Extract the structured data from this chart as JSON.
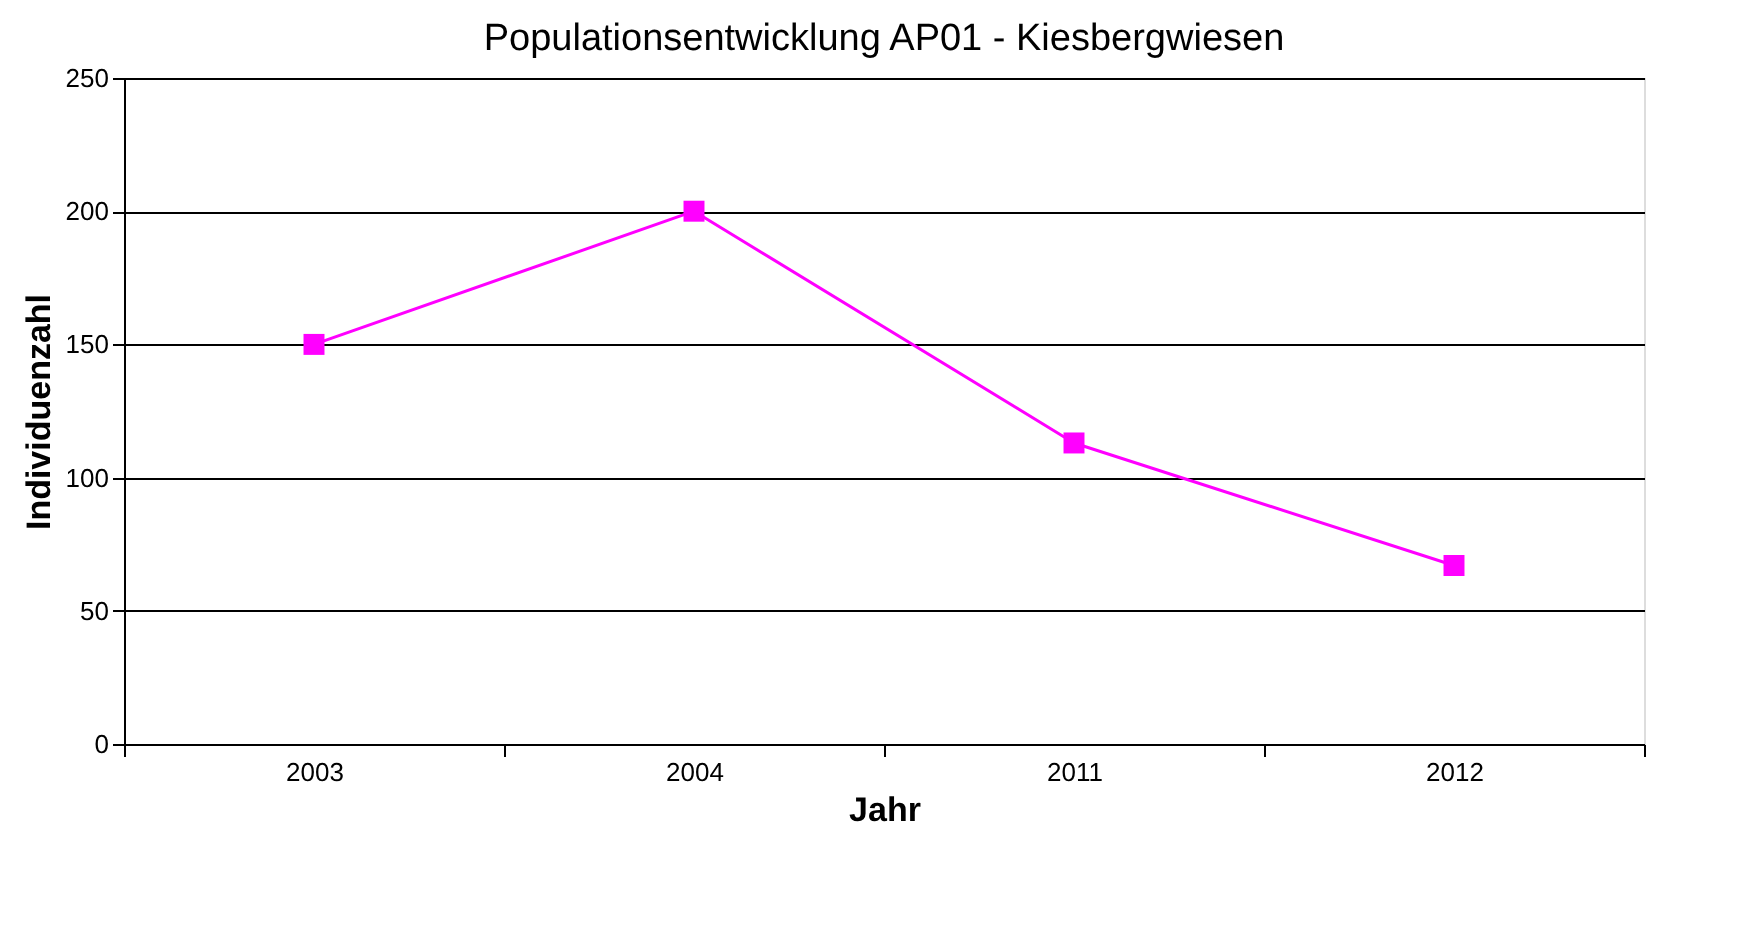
{
  "chart_data": {
    "type": "line",
    "title": "Populationsentwicklung AP01 - Kiesbergwiesen",
    "xlabel": "Jahr",
    "ylabel": "Individuenzahl",
    "categories": [
      "2003",
      "2004",
      "2011",
      "2012"
    ],
    "series": [
      {
        "color": "#ff00ff",
        "values": [
          150,
          200,
          113,
          67
        ]
      }
    ],
    "ylim": [
      0,
      250
    ],
    "yticks": [
      0,
      50,
      100,
      150,
      200,
      250
    ],
    "grid": "y",
    "marker": "square",
    "line_style": "solid"
  }
}
